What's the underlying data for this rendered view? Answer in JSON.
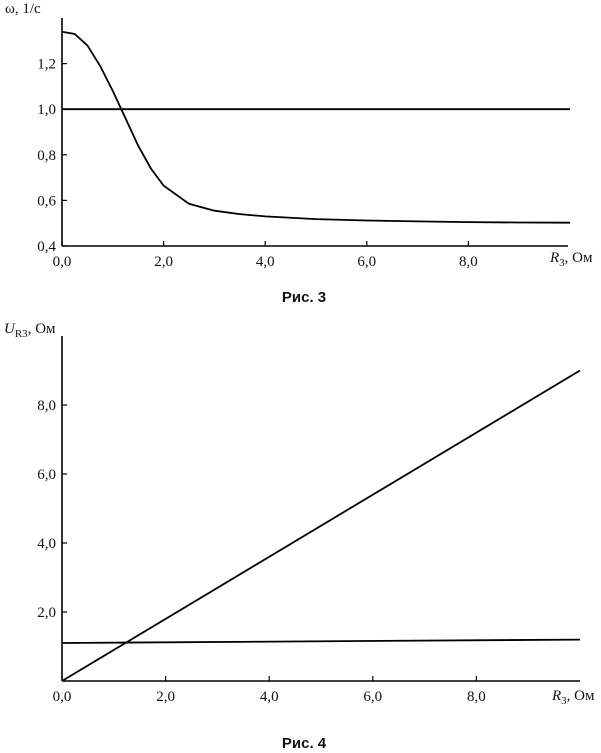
{
  "charts": [
    {
      "caption": "Рис. 3",
      "ylabel": "ω, 1/c",
      "xlabel_italic": "R",
      "xlabel_sub": "3",
      "xlabel_rest": ", Ом",
      "x_ticks": [
        "0,0",
        "2,0",
        "4,0",
        "6,0",
        "8,0"
      ],
      "y_ticks": [
        "0,4",
        "0,6",
        "0,8",
        "1,0",
        "1,2"
      ]
    },
    {
      "caption": "Рис. 4",
      "ylabel_italic": "U",
      "ylabel_sub": "R3",
      "ylabel_rest": ", Ом",
      "xlabel_italic": "R",
      "xlabel_sub": "3",
      "xlabel_rest": ", Ом",
      "x_ticks": [
        "0,0",
        "2,0",
        "4,0",
        "6,0",
        "8,0"
      ],
      "y_ticks": [
        "2,0",
        "4,0",
        "6,0",
        "8,0"
      ]
    }
  ],
  "chart_data": [
    {
      "type": "line",
      "title": "Рис. 3",
      "xlabel": "R3, Ом",
      "ylabel": "ω, 1/c",
      "xlim": [
        0,
        10
      ],
      "ylim": [
        0.4,
        1.4
      ],
      "x_tick_values": [
        0,
        2,
        4,
        6,
        8
      ],
      "y_tick_values": [
        0.4,
        0.6,
        0.8,
        1.0,
        1.2
      ],
      "grid": false,
      "series": [
        {
          "x": [
            0,
            0.25,
            0.5,
            0.75,
            1.0,
            1.25,
            1.5,
            1.75,
            2.0,
            2.5,
            3.0,
            3.5,
            4.0,
            5.0,
            6.0,
            7.0,
            8.0,
            9.0,
            10.0
          ],
          "y": [
            1.34,
            1.33,
            1.28,
            1.19,
            1.08,
            0.96,
            0.84,
            0.74,
            0.665,
            0.585,
            0.555,
            0.54,
            0.53,
            0.518,
            0.512,
            0.508,
            0.505,
            0.503,
            0.502
          ]
        },
        {
          "x": [
            0,
            10
          ],
          "y": [
            1.0,
            1.0
          ]
        }
      ]
    },
    {
      "type": "line",
      "title": "Рис. 4",
      "xlabel": "R3, Ом",
      "ylabel": "UR3, Ом",
      "xlim": [
        0,
        10
      ],
      "ylim": [
        0,
        10
      ],
      "x_tick_values": [
        0,
        2,
        4,
        6,
        8
      ],
      "y_tick_values": [
        2,
        4,
        6,
        8
      ],
      "grid": false,
      "series": [
        {
          "x": [
            0,
            10
          ],
          "y": [
            0,
            9.0
          ]
        },
        {
          "x": [
            0,
            10
          ],
          "y": [
            1.1,
            1.2
          ]
        }
      ]
    }
  ]
}
